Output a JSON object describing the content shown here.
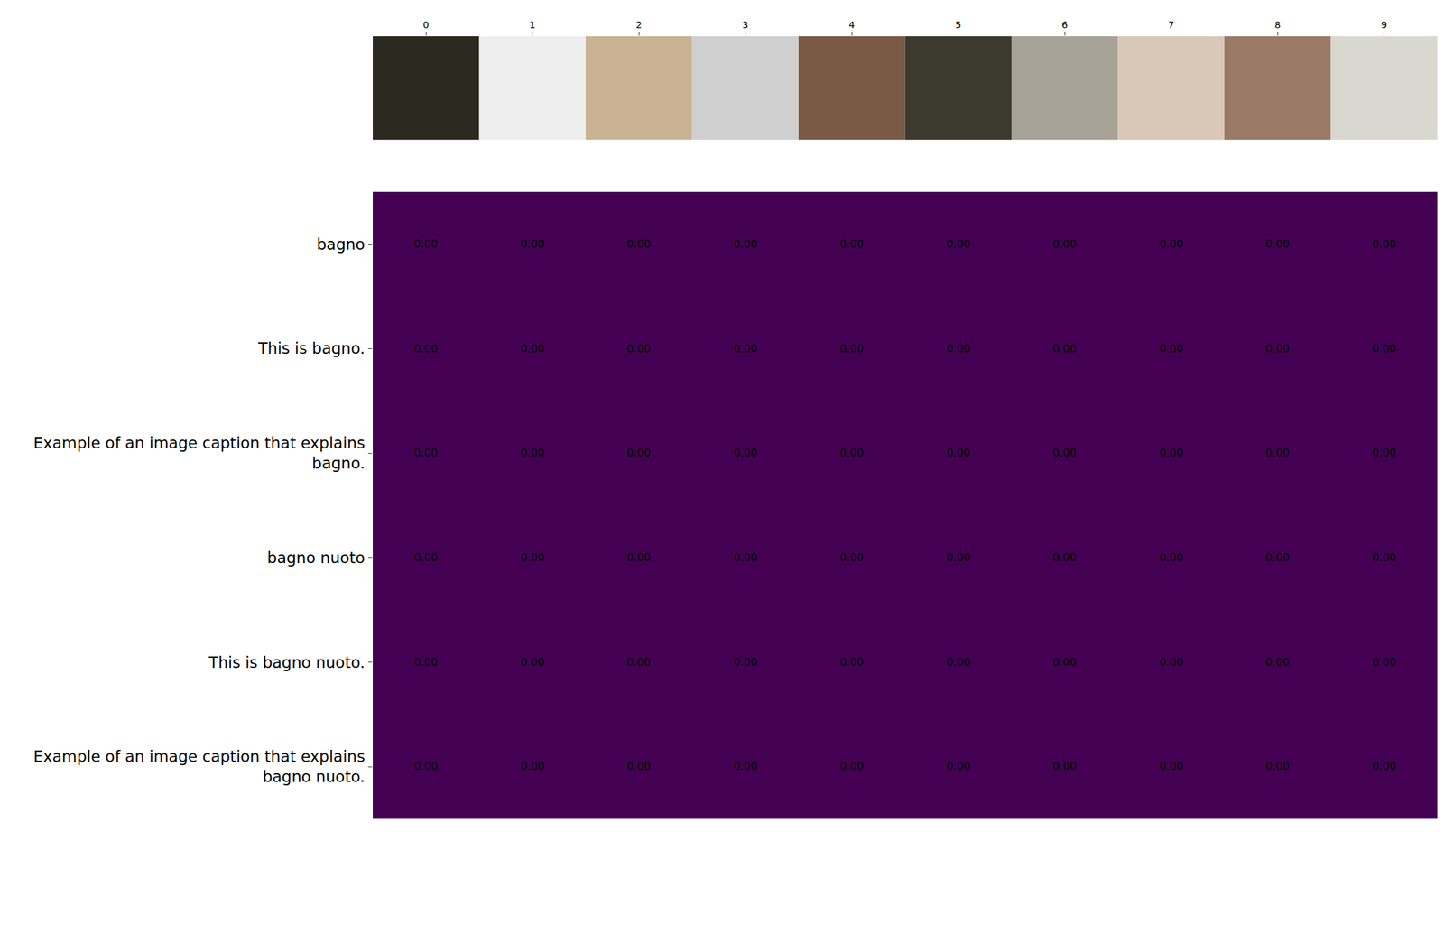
{
  "chart_data": {
    "type": "heatmap",
    "x": [
      0,
      1,
      2,
      3,
      4,
      5,
      6,
      7,
      8,
      9
    ],
    "xticks": [
      0,
      1,
      2,
      3,
      4,
      5,
      6,
      7,
      8,
      9
    ],
    "categories": [
      "bagno",
      "This is bagno.",
      "Example of an image caption that explains bagno.",
      "bagno nuoto",
      "This is bagno nuoto.",
      "Example of an image caption that explains bagno nuoto."
    ],
    "cells": [
      [
        0,
        0,
        0,
        0,
        0,
        0,
        0,
        0,
        0,
        0
      ],
      [
        0,
        0,
        0,
        0,
        0,
        0,
        0,
        0,
        0,
        0
      ],
      [
        0,
        0,
        0,
        0,
        0,
        0,
        0,
        0,
        0,
        0
      ],
      [
        0,
        0,
        0,
        0,
        0,
        0,
        0,
        0,
        0,
        0
      ],
      [
        0,
        0,
        0,
        0,
        0,
        0,
        0,
        0,
        0,
        0
      ],
      [
        0,
        0,
        0,
        0,
        0,
        0,
        0,
        0,
        0,
        0
      ]
    ],
    "value_labels": [
      [
        "0.00",
        "0.00",
        "0.00",
        "0.00",
        "0.00",
        "0.00",
        "0.00",
        "0.00",
        "0.00",
        "0.00"
      ],
      [
        "0.00",
        "0.00",
        "0.00",
        "0.00",
        "0.00",
        "0.00",
        "0.00",
        "0.00",
        "0.00",
        "0.00"
      ],
      [
        "0.00",
        "0.00",
        "0.00",
        "0.00",
        "0.00",
        "0.00",
        "0.00",
        "0.00",
        "0.00",
        "0.00"
      ],
      [
        "0.00",
        "0.00",
        "0.00",
        "0.00",
        "0.00",
        "0.00",
        "0.00",
        "0.00",
        "0.00",
        "0.00"
      ],
      [
        "0.00",
        "0.00",
        "0.00",
        "0.00",
        "0.00",
        "0.00",
        "0.00",
        "0.00",
        "0.00",
        "0.00"
      ],
      [
        "0.00",
        "0.00",
        "0.00",
        "0.00",
        "0.00",
        "0.00",
        "0.00",
        "0.00",
        "0.00",
        "0.00"
      ]
    ],
    "data_labels": true,
    "color": "#440154"
  }
}
